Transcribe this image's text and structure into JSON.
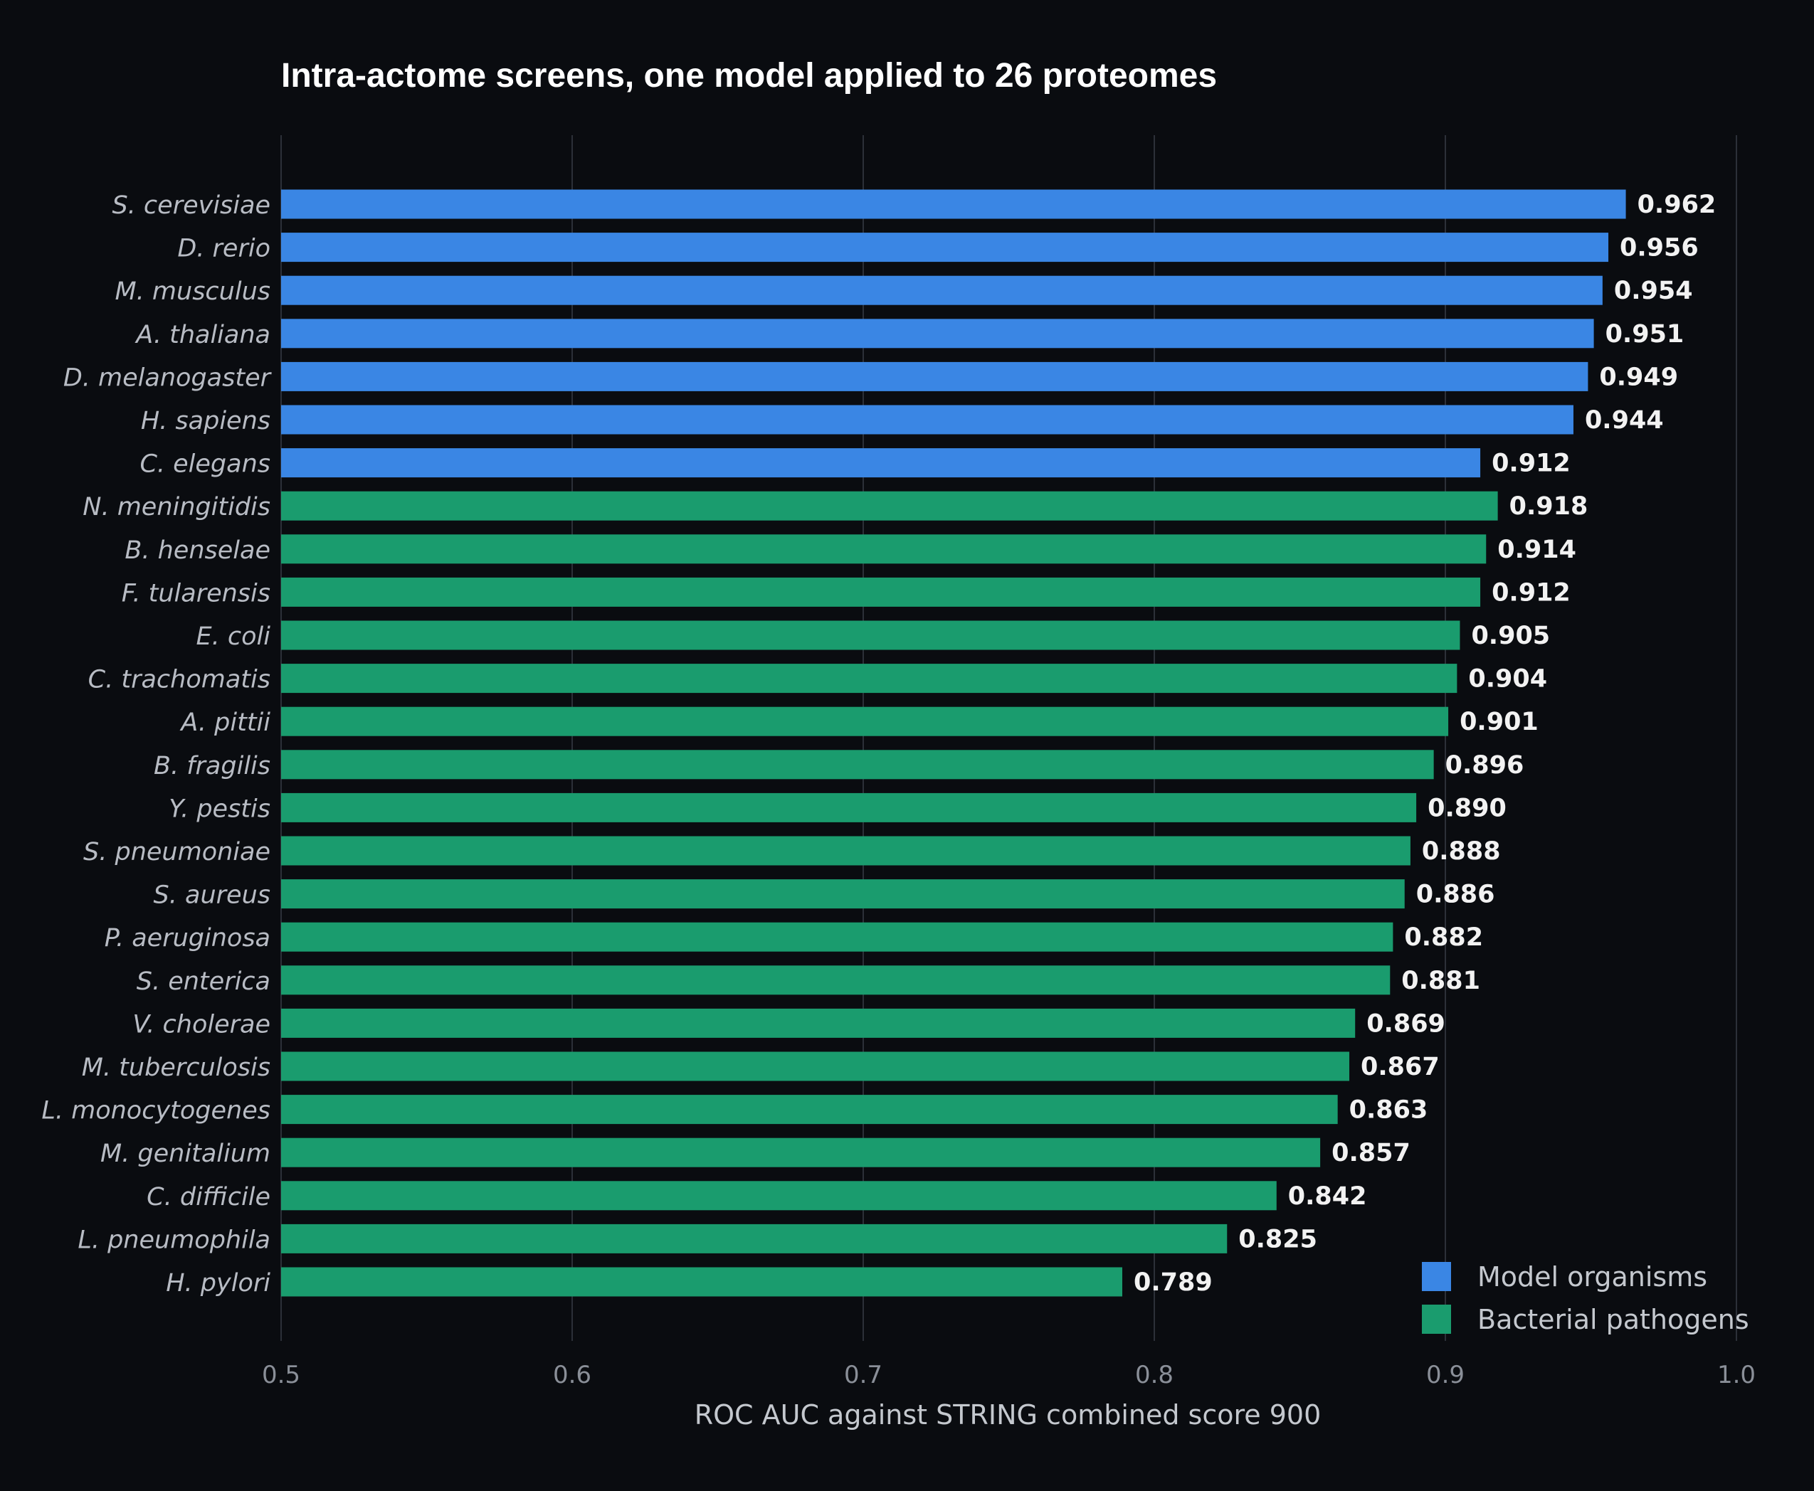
{
  "chart_data": {
    "type": "bar",
    "orientation": "horizontal",
    "title": "Intra-actome screens, one model applied to 26 proteomes",
    "xlabel": "ROC AUC against STRING combined score 900",
    "ylabel": "",
    "xlim": [
      0.5,
      1.0
    ],
    "xticks": [
      "0.5",
      "0.6",
      "0.7",
      "0.8",
      "0.9",
      "1.0"
    ],
    "grid": "vertical",
    "legend_position": "bottom-right",
    "colors": {
      "model": "#3a86e4",
      "pathogen": "#1a9c6e"
    },
    "series": [
      {
        "name": "Model organisms",
        "color": "#3a86e4"
      },
      {
        "name": "Bacterial pathogens",
        "color": "#1a9c6e"
      }
    ],
    "bars": [
      {
        "label": "S. cerevisiae",
        "value": 0.962,
        "value_label": "0.962",
        "group": 0
      },
      {
        "label": "D. rerio",
        "value": 0.956,
        "value_label": "0.956",
        "group": 0
      },
      {
        "label": "M. musculus",
        "value": 0.954,
        "value_label": "0.954",
        "group": 0
      },
      {
        "label": "A. thaliana",
        "value": 0.951,
        "value_label": "0.951",
        "group": 0
      },
      {
        "label": "D. melanogaster",
        "value": 0.949,
        "value_label": "0.949",
        "group": 0
      },
      {
        "label": "H. sapiens",
        "value": 0.944,
        "value_label": "0.944",
        "group": 0
      },
      {
        "label": "C. elegans",
        "value": 0.912,
        "value_label": "0.912",
        "group": 0
      },
      {
        "label": "N. meningitidis",
        "value": 0.918,
        "value_label": "0.918",
        "group": 1
      },
      {
        "label": "B. henselae",
        "value": 0.914,
        "value_label": "0.914",
        "group": 1
      },
      {
        "label": "F. tularensis",
        "value": 0.912,
        "value_label": "0.912",
        "group": 1
      },
      {
        "label": "E. coli",
        "value": 0.905,
        "value_label": "0.905",
        "group": 1
      },
      {
        "label": "C. trachomatis",
        "value": 0.904,
        "value_label": "0.904",
        "group": 1
      },
      {
        "label": "A. pittii",
        "value": 0.901,
        "value_label": "0.901",
        "group": 1
      },
      {
        "label": "B. fragilis",
        "value": 0.896,
        "value_label": "0.896",
        "group": 1
      },
      {
        "label": "Y. pestis",
        "value": 0.89,
        "value_label": "0.890",
        "group": 1
      },
      {
        "label": "S. pneumoniae",
        "value": 0.888,
        "value_label": "0.888",
        "group": 1
      },
      {
        "label": "S. aureus",
        "value": 0.886,
        "value_label": "0.886",
        "group": 1
      },
      {
        "label": "P. aeruginosa",
        "value": 0.882,
        "value_label": "0.882",
        "group": 1
      },
      {
        "label": "S. enterica",
        "value": 0.881,
        "value_label": "0.881",
        "group": 1
      },
      {
        "label": "V. cholerae",
        "value": 0.869,
        "value_label": "0.869",
        "group": 1
      },
      {
        "label": "M. tuberculosis",
        "value": 0.867,
        "value_label": "0.867",
        "group": 1
      },
      {
        "label": "L. monocytogenes",
        "value": 0.863,
        "value_label": "0.863",
        "group": 1
      },
      {
        "label": "M. genitalium",
        "value": 0.857,
        "value_label": "0.857",
        "group": 1
      },
      {
        "label": "C. difficile",
        "value": 0.842,
        "value_label": "0.842",
        "group": 1
      },
      {
        "label": "L. pneumophila",
        "value": 0.825,
        "value_label": "0.825",
        "group": 1
      },
      {
        "label": "H. pylori",
        "value": 0.789,
        "value_label": "0.789",
        "group": 1
      }
    ]
  }
}
